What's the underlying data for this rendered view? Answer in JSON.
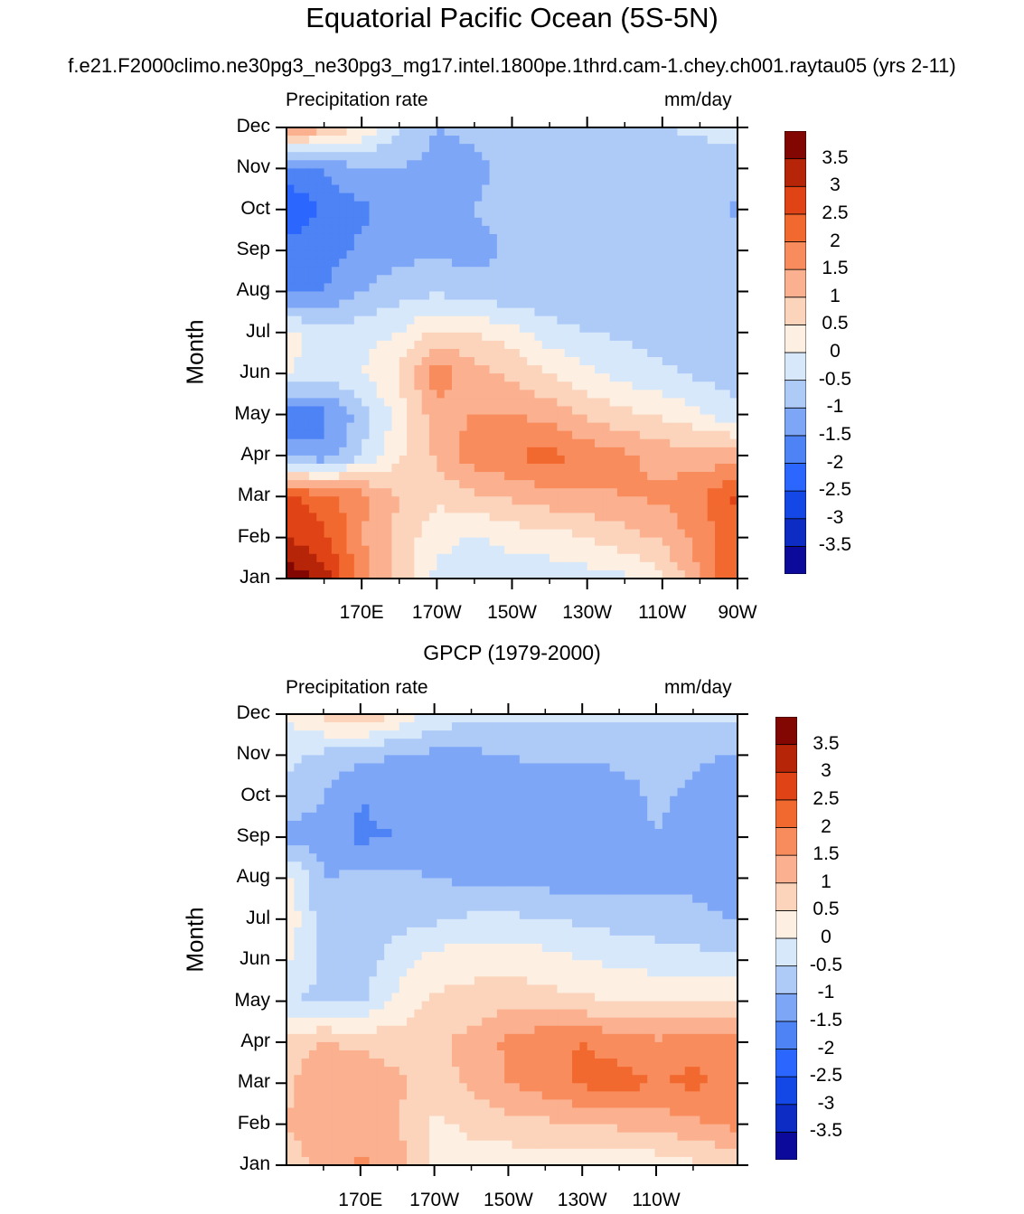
{
  "title": "Equatorial Pacific Ocean (5S-5N)",
  "subtitle": "f.e21.F2000climo.ne30pg3_ne30pg3_mg17.intel.1800pe.1thrd.cam-1.chey.ch001.raytau05 (yrs 2-11)",
  "colors": {
    "levels": [
      "#0c0a9a",
      "#0c2cc4",
      "#1448e6",
      "#2b66ff",
      "#4d83f5",
      "#7ea6f7",
      "#aecbf8",
      "#d7e8fb",
      "#fdf0e3",
      "#fcd4bc",
      "#fbb090",
      "#f88c5c",
      "#f2692f",
      "#e04416",
      "#b72508",
      "#820602"
    ]
  },
  "chart_data": [
    {
      "type": "heatmap",
      "title": "",
      "left_label": "Precipitation rate",
      "right_label": "mm/day",
      "ylabel": "Month",
      "y_ticks": [
        "Jan",
        "Feb",
        "Mar",
        "Apr",
        "May",
        "Jun",
        "Jul",
        "Aug",
        "Sep",
        "Oct",
        "Nov",
        "Dec"
      ],
      "x_ticks": [
        "170E",
        "170W",
        "150W",
        "130W",
        "110W",
        "90W"
      ],
      "x_range": [
        150,
        270
      ],
      "colorbar_labels": [
        "-3.5",
        "-3",
        "-2.5",
        "-2",
        "-1.5",
        "-1",
        "-0.5",
        "0",
        "0.5",
        "1",
        "1.5",
        "2",
        "2.5",
        "3",
        "3.5"
      ],
      "longitudes": [
        150,
        160,
        170,
        180,
        190,
        200,
        210,
        220,
        230,
        240,
        250,
        260,
        270
      ],
      "values": [
        [
          4.0,
          3.2,
          1.8,
          0.8,
          -0.2,
          -0.3,
          -0.4,
          -0.3,
          -0.2,
          -0.1,
          0.4,
          1.5,
          2.5
        ],
        [
          3.0,
          2.6,
          1.5,
          0.8,
          0.2,
          -0.1,
          0.2,
          0.3,
          0.5,
          0.8,
          1.1,
          1.7,
          2.4
        ],
        [
          2.6,
          2.2,
          1.7,
          1.0,
          0.6,
          0.9,
          1.1,
          1.3,
          1.4,
          1.5,
          1.6,
          1.9,
          2.6
        ],
        [
          -1.2,
          -1.4,
          -0.5,
          0.4,
          1.1,
          1.8,
          2.0,
          2.2,
          1.8,
          1.6,
          1.3,
          1.2,
          1.3
        ],
        [
          -2.1,
          -1.6,
          -0.8,
          0.2,
          1.3,
          1.5,
          1.5,
          1.3,
          0.9,
          0.6,
          0.4,
          0.1,
          -0.4
        ],
        [
          0.1,
          -0.3,
          0.0,
          0.6,
          1.8,
          1.2,
          0.9,
          0.5,
          0.1,
          -0.2,
          -0.4,
          -0.6,
          -0.8
        ],
        [
          0.2,
          -0.4,
          -0.2,
          0.0,
          0.6,
          0.5,
          0.2,
          -0.3,
          -0.5,
          -0.6,
          -0.7,
          -0.8,
          -0.9
        ],
        [
          -1.7,
          -1.5,
          -1.0,
          -0.7,
          -0.6,
          -0.8,
          -0.9,
          -0.9,
          -0.9,
          -0.9,
          -0.9,
          -0.9,
          -0.9
        ],
        [
          -1.8,
          -1.7,
          -1.4,
          -1.2,
          -1.1,
          -1.2,
          -0.9,
          -0.8,
          -0.8,
          -0.8,
          -0.8,
          -0.8,
          -0.8
        ],
        [
          -2.5,
          -1.9,
          -1.6,
          -1.2,
          -1.1,
          -1.0,
          -0.8,
          -0.7,
          -0.7,
          -0.7,
          -0.8,
          -0.8,
          -1.1
        ],
        [
          -1.6,
          -1.5,
          -1.0,
          -1.0,
          -1.2,
          -1.1,
          -0.9,
          -0.8,
          -0.8,
          -0.8,
          -0.8,
          -0.8,
          -0.7
        ],
        [
          1.6,
          1.2,
          0.4,
          -0.5,
          -1.0,
          -0.9,
          -0.7,
          -0.6,
          -0.6,
          -0.6,
          -0.5,
          -0.4,
          -0.3
        ]
      ]
    },
    {
      "type": "heatmap",
      "title": "GPCP (1979-2000)",
      "left_label": "Precipitation rate",
      "right_label": "mm/day",
      "ylabel": "Month",
      "y_ticks": [
        "Jan",
        "Feb",
        "Mar",
        "Apr",
        "May",
        "Jun",
        "Jul",
        "Aug",
        "Sep",
        "Oct",
        "Nov",
        "Dec"
      ],
      "x_ticks": [
        "170E",
        "170W",
        "150W",
        "130W",
        "110W"
      ],
      "x_range": [
        150,
        272
      ],
      "colorbar_labels": [
        "-3.5",
        "-3",
        "-2.5",
        "-2",
        "-1.5",
        "-1",
        "-0.5",
        "0",
        "0.5",
        "1",
        "1.5",
        "2",
        "2.5",
        "3",
        "3.5"
      ],
      "longitudes": [
        150,
        160,
        170,
        180,
        190,
        200,
        210,
        220,
        230,
        240,
        250,
        260,
        270
      ],
      "values": [
        [
          0.7,
          1.2,
          1.6,
          1.3,
          0.4,
          0.3,
          0.2,
          0.2,
          0.1,
          0.1,
          0.2,
          0.4,
          0.6
        ],
        [
          1.0,
          1.3,
          1.2,
          1.0,
          0.4,
          0.6,
          0.8,
          0.9,
          1.0,
          1.1,
          1.2,
          1.4,
          1.6
        ],
        [
          0.9,
          1.4,
          1.3,
          1.1,
          0.7,
          1.1,
          1.5,
          1.8,
          2.1,
          2.2,
          2.0,
          2.1,
          1.9
        ],
        [
          0.8,
          1.0,
          0.9,
          0.8,
          0.9,
          1.2,
          1.6,
          1.9,
          2.0,
          1.8,
          1.6,
          1.9,
          1.7
        ],
        [
          -0.5,
          -0.6,
          -0.6,
          0.1,
          0.6,
          0.7,
          0.8,
          0.7,
          0.6,
          0.5,
          0.4,
          0.4,
          0.5
        ],
        [
          0.1,
          -0.6,
          -0.8,
          -0.2,
          0.2,
          0.3,
          0.3,
          0.2,
          0.0,
          -0.1,
          -0.2,
          -0.3,
          -0.4
        ],
        [
          0.4,
          -0.8,
          -0.9,
          -0.7,
          -0.6,
          -0.4,
          -0.4,
          -0.5,
          -0.6,
          -0.7,
          -0.8,
          -0.9,
          -1.0
        ],
        [
          0.2,
          -1.0,
          -0.9,
          -0.9,
          -1.0,
          -1.1,
          -1.2,
          -1.2,
          -1.3,
          -1.3,
          -1.2,
          -1.1,
          -1.3
        ],
        [
          -1.2,
          -1.2,
          -1.6,
          -1.5,
          -1.2,
          -1.3,
          -1.4,
          -1.3,
          -1.3,
          -1.2,
          -1.0,
          -1.2,
          -1.5
        ],
        [
          -0.6,
          -1.0,
          -1.5,
          -1.3,
          -1.2,
          -1.2,
          -1.3,
          -1.4,
          -1.3,
          -1.2,
          -0.9,
          -1.1,
          -1.4
        ],
        [
          -0.4,
          -0.6,
          -0.9,
          -1.0,
          -1.1,
          -1.1,
          -1.0,
          -0.9,
          -0.9,
          -0.9,
          -0.8,
          -0.9,
          -1.0
        ],
        [
          0.1,
          0.6,
          1.0,
          0.4,
          -0.2,
          -0.3,
          -0.4,
          -0.4,
          -0.4,
          -0.4,
          -0.4,
          -0.4,
          -0.4
        ]
      ]
    }
  ]
}
